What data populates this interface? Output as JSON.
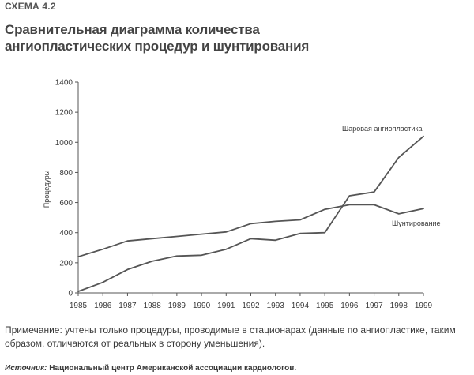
{
  "header": {
    "scheme_label": "СХЕМА 4.2",
    "title_line1": "Сравнительная диаграмма количества",
    "title_line2": "ангиопластических процедур и шунтирования"
  },
  "note": "Примечание: учтены только процедуры, проводимые в стационарах (данные по ангиопластике, таким образом, отличаются от реальных в сторону уменьшения).",
  "source": {
    "label": "Источник:",
    "text": "Национальный центр Американской ассоциации кардиологов."
  },
  "colors": {
    "line": "#555555",
    "axis": "#555555",
    "text": "#3a3a3a"
  },
  "chart_data": {
    "type": "line",
    "title": "",
    "xlabel": "",
    "ylabel": "Процедуры",
    "x": [
      "1985",
      "1986",
      "1987",
      "1988",
      "1989",
      "1990",
      "1991",
      "1992",
      "1993",
      "1994",
      "1995",
      "1996",
      "1997",
      "1998",
      "1999"
    ],
    "ylim": [
      0,
      1400
    ],
    "yticks": [
      "0",
      "200",
      "400",
      "600",
      "800",
      "1000",
      "1200",
      "1400"
    ],
    "grid": false,
    "series": [
      {
        "name": "Шаровая ангиопластика",
        "values": [
          10,
          70,
          155,
          210,
          245,
          250,
          290,
          360,
          350,
          395,
          400,
          645,
          670,
          900,
          1040
        ]
      },
      {
        "name": "Шунтирование",
        "values": [
          240,
          290,
          345,
          360,
          375,
          390,
          405,
          460,
          475,
          485,
          555,
          585,
          585,
          525,
          560
        ]
      }
    ]
  }
}
